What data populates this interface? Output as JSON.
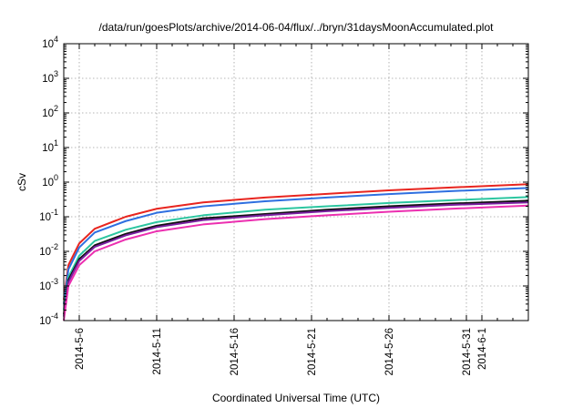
{
  "chart_data": {
    "type": "line",
    "title": "/data/run/goesPlots/archive/2014-06-04/flux/../bryn/31daysMoonAccumulated.plot",
    "xlabel": "Coordinated Universal Time (UTC)",
    "ylabel": "cSv",
    "yscale": "log",
    "ylim": [
      0.0001,
      10000
    ],
    "y_ticks": [
      {
        "value": 0.0001,
        "base": "10",
        "exp": "-4"
      },
      {
        "value": 0.001,
        "base": "10",
        "exp": "-3"
      },
      {
        "value": 0.01,
        "base": "10",
        "exp": "-2"
      },
      {
        "value": 0.1,
        "base": "10",
        "exp": "-1"
      },
      {
        "value": 1,
        "base": "10",
        "exp": "0"
      },
      {
        "value": 10,
        "base": "10",
        "exp": "1"
      },
      {
        "value": 100,
        "base": "10",
        "exp": "2"
      },
      {
        "value": 1000,
        "base": "10",
        "exp": "3"
      },
      {
        "value": 10000,
        "base": "10",
        "exp": "4"
      }
    ],
    "xlim": [
      "2014-05-05",
      "2014-06-04"
    ],
    "x_ticks": [
      "2014-5-6",
      "2014-5-11",
      "2014-5-16",
      "2014-5-21",
      "2014-5-26",
      "2014-5-31",
      "2014-6-1"
    ],
    "grid": true,
    "series": [
      {
        "color": "#e8251f",
        "x": [
          "2014-05-05",
          "2014-05-05.3",
          "2014-05-06",
          "2014-05-07",
          "2014-05-09",
          "2014-05-11",
          "2014-05-14",
          "2014-05-18",
          "2014-05-22",
          "2014-05-26",
          "2014-05-30",
          "2014-06-04"
        ],
        "values": [
          0.0004,
          0.004,
          0.017,
          0.045,
          0.1,
          0.17,
          0.26,
          0.36,
          0.46,
          0.58,
          0.7,
          0.87
        ]
      },
      {
        "color": "#2e6fe0",
        "x": [
          "2014-05-05",
          "2014-05-05.3",
          "2014-05-06",
          "2014-05-07",
          "2014-05-09",
          "2014-05-11",
          "2014-05-14",
          "2014-05-18",
          "2014-05-22",
          "2014-05-26",
          "2014-05-30",
          "2014-06-04"
        ],
        "values": [
          0.0003,
          0.003,
          0.013,
          0.035,
          0.075,
          0.13,
          0.2,
          0.28,
          0.36,
          0.45,
          0.55,
          0.68
        ]
      },
      {
        "color": "#2cc6a0",
        "x": [
          "2014-05-05",
          "2014-05-05.3",
          "2014-05-06",
          "2014-05-07",
          "2014-05-09",
          "2014-05-11",
          "2014-05-14",
          "2014-05-18",
          "2014-05-22",
          "2014-05-26",
          "2014-05-30",
          "2014-06-04"
        ],
        "values": [
          0.0002,
          0.0018,
          0.0075,
          0.02,
          0.042,
          0.07,
          0.11,
          0.16,
          0.2,
          0.25,
          0.3,
          0.37
        ]
      },
      {
        "color": "#111111",
        "x": [
          "2014-05-05",
          "2014-05-05.3",
          "2014-05-06",
          "2014-05-07",
          "2014-05-09",
          "2014-05-11",
          "2014-05-14",
          "2014-05-18",
          "2014-05-22",
          "2014-05-26",
          "2014-05-30",
          "2014-06-04"
        ],
        "values": [
          0.00015,
          0.0015,
          0.006,
          0.015,
          0.032,
          0.055,
          0.09,
          0.12,
          0.16,
          0.2,
          0.24,
          0.29
        ]
      },
      {
        "color": "#7a1fa0",
        "x": [
          "2014-05-05",
          "2014-05-05.3",
          "2014-05-06",
          "2014-05-07",
          "2014-05-09",
          "2014-05-11",
          "2014-05-14",
          "2014-05-18",
          "2014-05-22",
          "2014-05-26",
          "2014-05-30",
          "2014-06-04"
        ],
        "values": [
          0.00013,
          0.0013,
          0.0053,
          0.0135,
          0.029,
          0.05,
          0.08,
          0.11,
          0.145,
          0.18,
          0.22,
          0.26
        ]
      },
      {
        "color": "#ec2fb0",
        "x": [
          "2014-05-05",
          "2014-05-05.3",
          "2014-05-06",
          "2014-05-07",
          "2014-05-09",
          "2014-05-11",
          "2014-05-14",
          "2014-05-18",
          "2014-05-22",
          "2014-05-26",
          "2014-05-30",
          "2014-06-04"
        ],
        "values": [
          0.0001,
          0.001,
          0.004,
          0.01,
          0.022,
          0.038,
          0.06,
          0.085,
          0.11,
          0.14,
          0.17,
          0.21
        ]
      }
    ]
  }
}
